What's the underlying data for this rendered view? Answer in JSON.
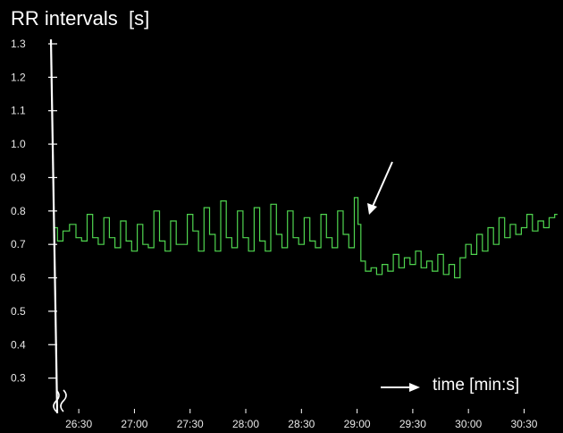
{
  "title": "RR intervals  [s]",
  "time_axis_label": "time [min:s]",
  "chart_data": {
    "type": "line",
    "ylabel": "RR intervals  [s]",
    "xlabel": "time [min:s]",
    "ylim": [
      0.2,
      1.3
    ],
    "yticks": [
      0.3,
      0.4,
      0.5,
      0.6,
      0.7,
      0.8,
      0.9,
      1.0,
      1.1,
      1.2,
      1.3
    ],
    "ytick_labels": [
      "0.3",
      "0.4",
      "0.5",
      "0.6",
      "0.7",
      "0.8",
      "0.9",
      "1.0",
      "1.1",
      "1.2",
      "1.3"
    ],
    "xlim_seconds": [
      1575,
      1850
    ],
    "xticks_seconds": [
      1590,
      1620,
      1650,
      1680,
      1710,
      1740,
      1770,
      1800,
      1830
    ],
    "xtick_labels": [
      "26:30",
      "27:00",
      "27:30",
      "28:00",
      "28:30",
      "29:00",
      "29:30",
      "30:00",
      "30:30"
    ],
    "grid": false,
    "line_color": "#4fd64f",
    "axis_color": "#ffffff",
    "annotation_arrow_at_seconds": 1743,
    "series": [
      {
        "x": [
          1577,
          1580,
          1583,
          1587,
          1590,
          1593,
          1596,
          1599,
          1602,
          1605,
          1608,
          1611,
          1614,
          1617,
          1620,
          1623,
          1626,
          1629,
          1632,
          1635,
          1638,
          1641,
          1644,
          1647,
          1650,
          1653,
          1656,
          1659,
          1662,
          1665,
          1668,
          1671,
          1674,
          1677,
          1680,
          1683,
          1686,
          1689,
          1692,
          1695,
          1698,
          1701,
          1704,
          1707,
          1710,
          1713,
          1716,
          1719,
          1722,
          1725,
          1728,
          1731,
          1734,
          1737,
          1740,
          1741,
          1743,
          1746,
          1749,
          1752,
          1755,
          1758,
          1761,
          1764,
          1767,
          1770,
          1773,
          1776,
          1779,
          1782,
          1785,
          1788,
          1791,
          1794,
          1797,
          1800,
          1803,
          1806,
          1809,
          1812,
          1815,
          1818,
          1821,
          1824,
          1827,
          1830,
          1833,
          1836,
          1839,
          1842,
          1845,
          1848
        ],
        "y": [
          0.75,
          0.71,
          0.74,
          0.76,
          0.72,
          0.71,
          0.79,
          0.72,
          0.7,
          0.78,
          0.72,
          0.69,
          0.77,
          0.71,
          0.68,
          0.76,
          0.7,
          0.69,
          0.8,
          0.71,
          0.68,
          0.77,
          0.7,
          0.7,
          0.79,
          0.74,
          0.68,
          0.81,
          0.73,
          0.68,
          0.83,
          0.72,
          0.69,
          0.8,
          0.72,
          0.68,
          0.81,
          0.71,
          0.68,
          0.82,
          0.73,
          0.69,
          0.8,
          0.72,
          0.7,
          0.78,
          0.71,
          0.69,
          0.79,
          0.72,
          0.69,
          0.8,
          0.73,
          0.69,
          0.84,
          0.76,
          0.65,
          0.62,
          0.63,
          0.61,
          0.64,
          0.62,
          0.67,
          0.63,
          0.66,
          0.64,
          0.68,
          0.63,
          0.65,
          0.62,
          0.67,
          0.61,
          0.64,
          0.6,
          0.66,
          0.7,
          0.67,
          0.73,
          0.68,
          0.75,
          0.7,
          0.78,
          0.72,
          0.76,
          0.73,
          0.75,
          0.79,
          0.74,
          0.77,
          0.75,
          0.78,
          0.79
        ]
      }
    ]
  }
}
